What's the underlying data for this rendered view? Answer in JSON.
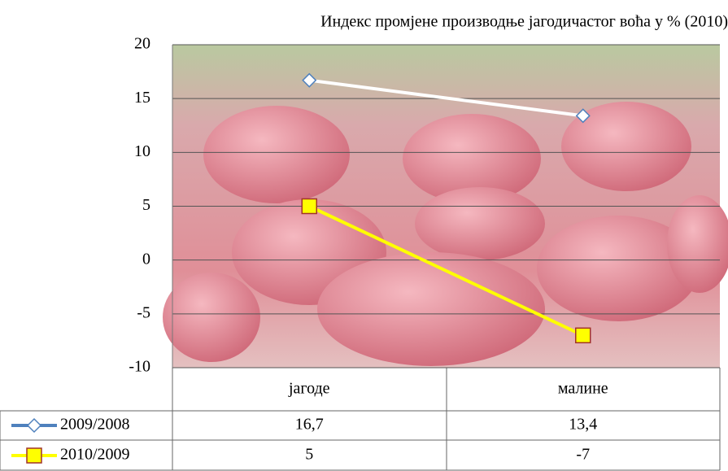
{
  "chart_data": {
    "type": "line",
    "title": "Индекс промјене производње јагодичастог воћа у % (2010)",
    "categories": [
      "јагоде",
      "малине"
    ],
    "series": [
      {
        "name": "2009/2008",
        "color": "#4f81bd",
        "line_color": "#ffffff",
        "marker": "diamond",
        "values": [
          16.7,
          13.4
        ],
        "value_labels": [
          "16,7",
          "13,4"
        ]
      },
      {
        "name": "2010/2009",
        "color": "#ffff00",
        "line_color": "#ffff00",
        "marker": "square",
        "values": [
          5,
          -7
        ]
      }
    ],
    "ylim": [
      -10,
      20
    ],
    "yticks": [
      -10,
      -5,
      0,
      5,
      10,
      15,
      20
    ],
    "grid": true
  }
}
